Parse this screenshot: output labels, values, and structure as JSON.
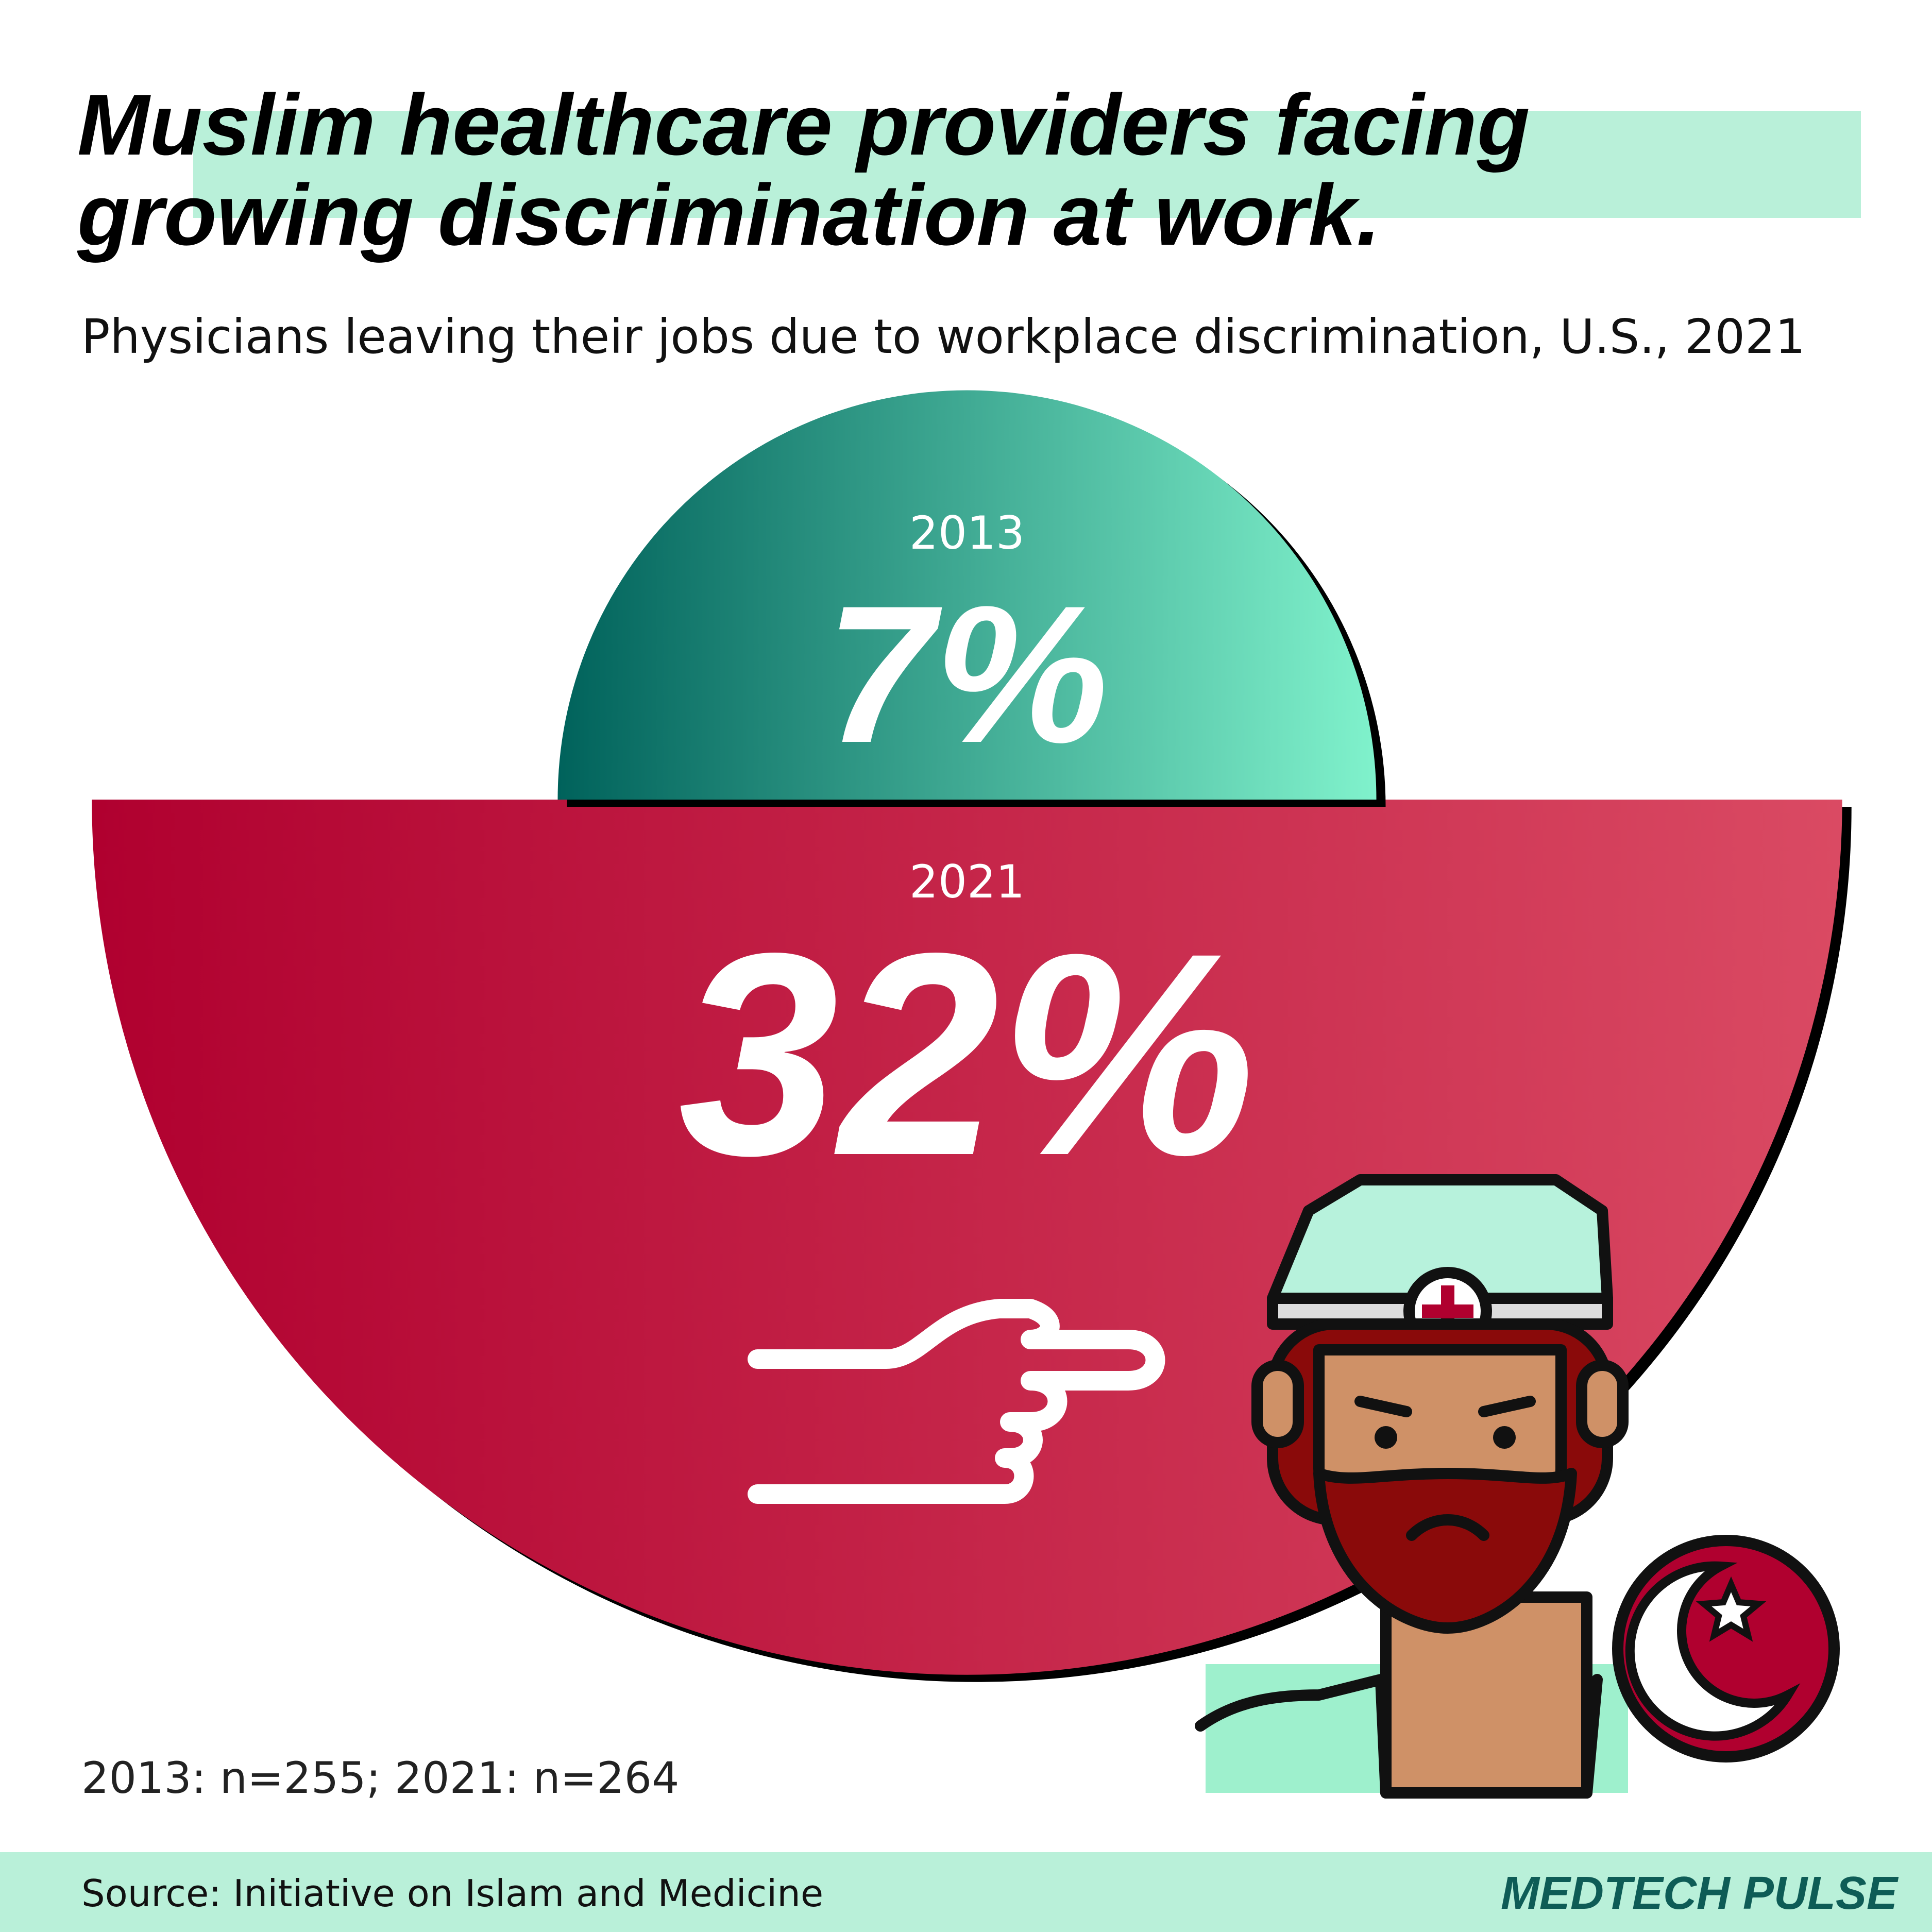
{
  "chart_data": {
    "type": "semicircle",
    "title": [
      "Muslim healthcare providers facing",
      "growing discrimination at work."
    ],
    "subtitle": "Physicians leaving their jobs due to workplace discrimination, U.S., 2021",
    "categories": [
      "2013",
      "2021"
    ],
    "values": [
      7,
      32
    ],
    "value_labels": [
      "7%",
      "32%"
    ],
    "gradients": [
      [
        "#00625b",
        "#80f2cc"
      ],
      [
        "#b0002f",
        "#da4a63"
      ]
    ],
    "note": "2013: n=255; 2021: n=264",
    "source": "Source: Initiative on Islam and Medicine",
    "brand": "MEDTECH PULSE"
  }
}
